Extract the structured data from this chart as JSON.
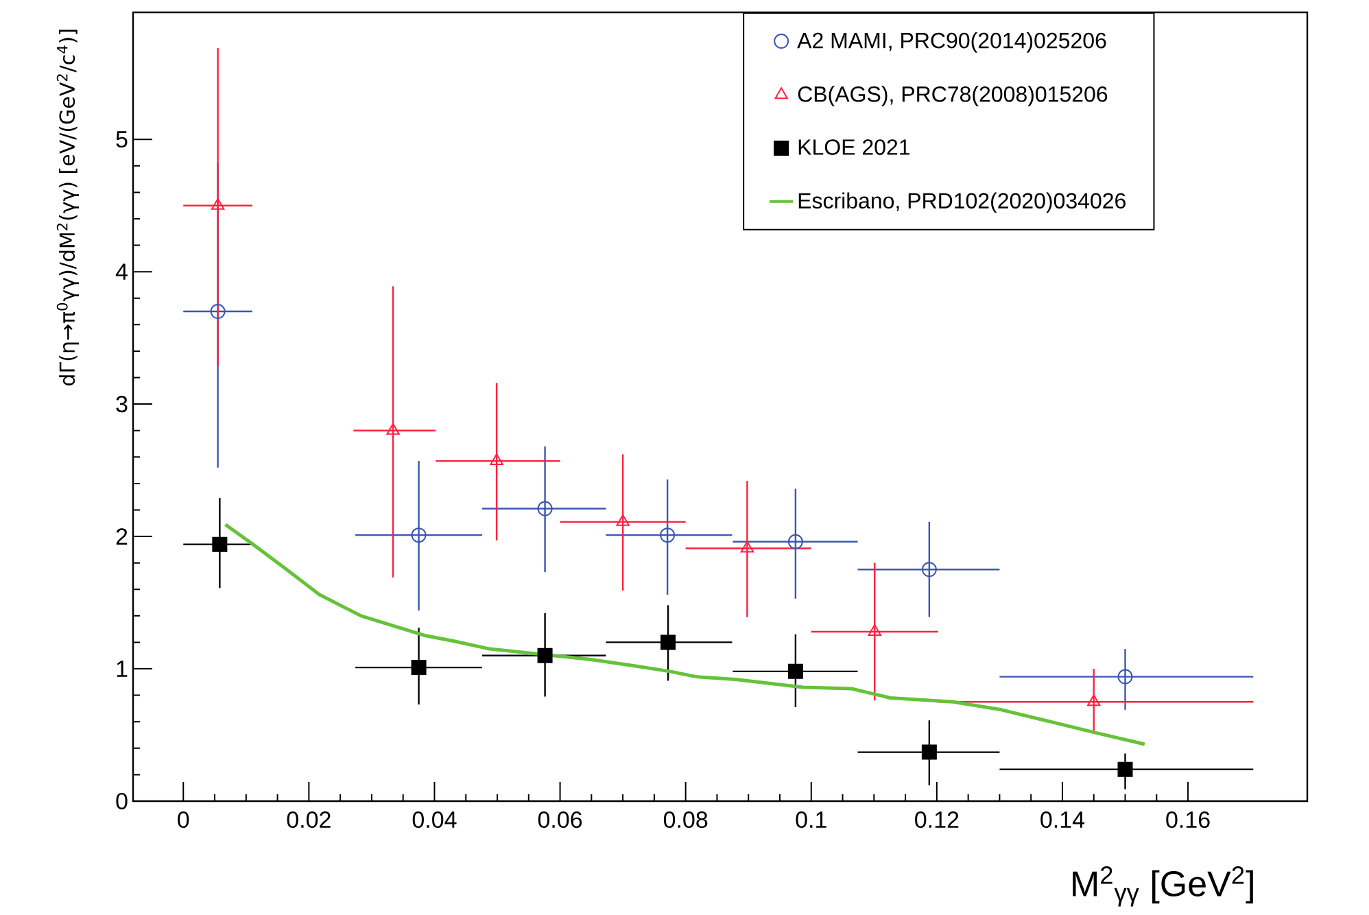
{
  "chart_data": {
    "type": "scatter",
    "xlabel": "M$^{2}$$_{γγ}$ [GeV$^{2}$]",
    "ylabel": "dΓ(η→π$^{0}$γγ)/dM$^{2}$(γγ) [eV/(GeV$^{2}$/c$^{4}$)]",
    "xlim": [
      -0.008,
      0.179
    ],
    "ylim": [
      0,
      5.96
    ],
    "xticks": [
      0,
      0.02,
      0.04,
      0.06,
      0.08,
      0.1,
      0.12,
      0.14,
      0.16
    ],
    "yticks": [
      0,
      1,
      2,
      3,
      4,
      5
    ],
    "legend": "top right",
    "series": [
      {
        "name": "A2 MAMI, PRC90(2014)025206",
        "color": "#3a56b0",
        "marker": "circle",
        "x": [
          0.0055,
          0.0375,
          0.0576,
          0.0771,
          0.0975,
          0.1188,
          0.15
        ],
        "values": [
          3.7,
          2.01,
          2.21,
          2.01,
          1.96,
          1.75,
          0.94
        ],
        "errors": [
          [
            2.52,
            4.82
          ],
          [
            1.44,
            2.57
          ],
          [
            1.73,
            2.68
          ],
          [
            1.56,
            2.43
          ],
          [
            1.53,
            2.36
          ],
          [
            1.39,
            2.11
          ],
          [
            0.69,
            1.15
          ]
        ],
        "xerrors": [
          [
            0.0,
            0.011
          ],
          [
            0.0274,
            0.0476
          ],
          [
            0.0476,
            0.0673
          ],
          [
            0.0673,
            0.0874
          ],
          [
            0.0875,
            0.1074
          ],
          [
            0.1074,
            0.13
          ],
          [
            0.13,
            0.1704
          ]
        ]
      },
      {
        "name": "CB(AGS), PRC78(2008)015206",
        "color": "#ff2040",
        "marker": "triangle",
        "x": [
          0.0055,
          0.0334,
          0.0499,
          0.07,
          0.0898,
          0.1101,
          0.145
        ],
        "values": [
          4.5,
          2.8,
          2.57,
          2.11,
          1.91,
          1.28,
          0.75
        ],
        "errors": [
          [
            3.29,
            5.69
          ],
          [
            1.69,
            3.89
          ],
          [
            1.97,
            3.16
          ],
          [
            1.59,
            2.62
          ],
          [
            1.39,
            2.42
          ],
          [
            0.76,
            1.8
          ],
          [
            0.51,
            1.0
          ]
        ],
        "xerrors": [
          [
            0.0,
            0.011
          ],
          [
            0.0271,
            0.0402
          ],
          [
            0.0402,
            0.06
          ],
          [
            0.06,
            0.08
          ],
          [
            0.08,
            0.1
          ],
          [
            0.1,
            0.1202
          ],
          [
            0.1202,
            0.1704
          ]
        ]
      },
      {
        "name": "KLOE 2021",
        "color": "#000000",
        "marker": "square",
        "x": [
          0.0058,
          0.0375,
          0.0576,
          0.0772,
          0.0975,
          0.1188,
          0.15
        ],
        "values": [
          1.94,
          1.01,
          1.1,
          1.2,
          0.98,
          0.37,
          0.24
        ],
        "errors": [
          [
            1.61,
            2.29
          ],
          [
            0.73,
            1.31
          ],
          [
            0.79,
            1.42
          ],
          [
            0.91,
            1.48
          ],
          [
            0.71,
            1.26
          ],
          [
            0.12,
            0.61
          ],
          [
            0.09,
            0.36
          ]
        ],
        "xerrors": [
          [
            0.0,
            0.011
          ],
          [
            0.0274,
            0.0476
          ],
          [
            0.0476,
            0.0673
          ],
          [
            0.0673,
            0.0874
          ],
          [
            0.0875,
            0.1074
          ],
          [
            0.1074,
            0.13
          ],
          [
            0.13,
            0.1704
          ]
        ]
      },
      {
        "name": "Escribano, PRD102(2020)034026",
        "type": "line",
        "color": "#66c23a",
        "marker": "none",
        "x": [
          0.0067,
          0.0111,
          0.0159,
          0.0217,
          0.0283,
          0.0386,
          0.043,
          0.0488,
          0.0649,
          0.0722,
          0.0775,
          0.0817,
          0.0879,
          0.0987,
          0.1064,
          0.1126,
          0.1226,
          0.1303,
          0.1381,
          0.145,
          0.1531
        ],
        "values": [
          2.09,
          1.94,
          1.77,
          1.56,
          1.4,
          1.25,
          1.21,
          1.15,
          1.07,
          1.02,
          0.98,
          0.94,
          0.92,
          0.86,
          0.85,
          0.78,
          0.75,
          0.69,
          0.6,
          0.52,
          0.43
        ]
      }
    ]
  }
}
